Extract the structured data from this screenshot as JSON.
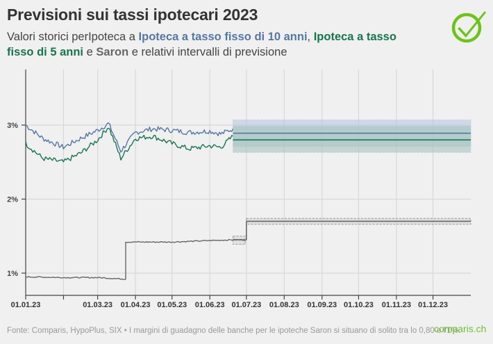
{
  "header": {
    "title": "Previsioni sui tassi ipotecari 2023",
    "subtitle_prefix": "Valori storici perIpoteca a ",
    "subtitle_series1": "Ipoteca a tasso fisso di 10 anni",
    "subtitle_sep1": ", ",
    "subtitle_series2": "Ipoteca a tasso fisso di 5 anni",
    "subtitle_sep2": " e ",
    "subtitle_series3": "Saron",
    "subtitle_suffix": " e relativi intervalli di previsione"
  },
  "logo": {
    "icon": "checkmark-circle-icon",
    "color": "#6cc417"
  },
  "footer": {
    "source": "Fonte: Comparis, HypoPlus, SIX • I margini di guadagno delle banche per le ipoteche Saron si situano di solito tra lo 0,80 e l'1%.",
    "brand": "comparis.ch"
  },
  "colors": {
    "fixed10": "#5577a3",
    "fixed5": "#17744f",
    "saron": "#666666",
    "band10": "#b4c4e0",
    "band5": "#9fc3b7",
    "grid": "#d8d8d8"
  },
  "chart_data": {
    "type": "line",
    "title": "Previsioni sui tassi ipotecari 2023",
    "xlabel": "",
    "ylabel": "",
    "ylim": [
      0.85,
      3.4
    ],
    "grid": true,
    "x_tick_labels": [
      "01.01.23",
      "01.03.23",
      "01.04.23",
      "01.05.23",
      "01.06.23",
      "01.07.23",
      "01.08.23",
      "01.09.23",
      "01.10.23",
      "01.11.23",
      "01.12.23"
    ],
    "y_tick_labels": [
      "1%",
      "2%",
      "3%"
    ],
    "series": [
      {
        "name": "Ipoteca a tasso fisso di 10 anni",
        "x": [
          "01.01.23",
          "15.01.23",
          "01.02.23",
          "15.02.23",
          "01.03.23",
          "10.03.23",
          "20.03.23",
          "01.04.23",
          "15.04.23",
          "01.05.23",
          "15.05.23",
          "01.06.23",
          "10.06.23",
          "20.06.23"
        ],
        "values": [
          3.0,
          2.82,
          2.7,
          2.82,
          2.93,
          3.02,
          2.65,
          2.9,
          2.95,
          2.93,
          2.9,
          2.92,
          2.88,
          2.95
        ]
      },
      {
        "name": "Ipoteca a tasso fisso di 5 anni",
        "x": [
          "01.01.23",
          "15.01.23",
          "01.02.23",
          "15.02.23",
          "01.03.23",
          "10.03.23",
          "20.03.23",
          "01.04.23",
          "15.04.23",
          "01.05.23",
          "15.05.23",
          "01.06.23",
          "10.06.23",
          "20.06.23"
        ],
        "values": [
          2.75,
          2.55,
          2.5,
          2.62,
          2.8,
          2.98,
          2.55,
          2.82,
          2.85,
          2.75,
          2.68,
          2.72,
          2.7,
          2.85
        ]
      },
      {
        "name": "Saron",
        "x": [
          "01.01.23",
          "01.02.23",
          "01.03.23",
          "23.03.23",
          "24.03.23",
          "01.04.23",
          "01.05.23",
          "01.06.23",
          "20.06.23",
          "01.07.23"
        ],
        "values": [
          0.95,
          0.94,
          0.94,
          0.92,
          1.42,
          1.42,
          1.42,
          1.44,
          1.45,
          1.7
        ]
      }
    ],
    "forecasts": [
      {
        "name": "Ipoteca a tasso fisso di 10 anni",
        "from": "20.06.23",
        "to": "31.12.23",
        "value": 2.89,
        "lower": 2.71,
        "upper": 3.07
      },
      {
        "name": "Ipoteca a tasso fisso di 5 anni",
        "from": "20.06.23",
        "to": "31.12.23",
        "value": 2.8,
        "lower": 2.63,
        "upper": 2.99
      },
      {
        "name": "Saron (giugno)",
        "from": "20.06.23",
        "to": "30.06.23",
        "value": 1.45,
        "lower": 1.39,
        "upper": 1.5
      },
      {
        "name": "Saron",
        "from": "01.07.23",
        "to": "31.12.23",
        "value": 1.7,
        "lower": 1.66,
        "upper": 1.74
      }
    ]
  }
}
